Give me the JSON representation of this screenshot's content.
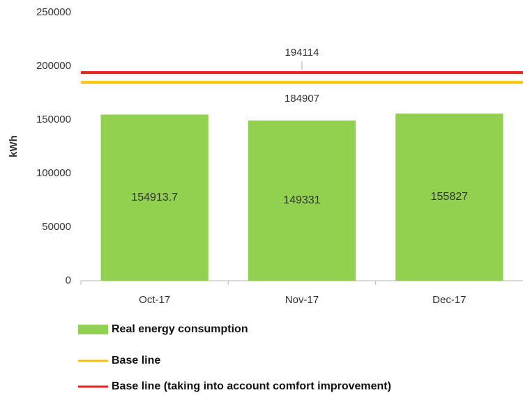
{
  "chart_data": {
    "type": "bar",
    "ylabel": "kWh",
    "categories": [
      "Oct-17",
      "Nov-17",
      "Dec-17"
    ],
    "series": [
      {
        "name": "Real energy consumption",
        "color": "#92d050",
        "values": [
          154913.7,
          149331,
          155827
        ]
      }
    ],
    "reference_lines": [
      {
        "name": "Base line",
        "color": "#ffc000",
        "value": 184907,
        "label_side": "below"
      },
      {
        "name": "Base line (taking into account comfort improvement)",
        "color": "#e8211b",
        "value": 194114,
        "label_side": "above"
      }
    ],
    "ylim": [
      0,
      250000
    ],
    "yticks": [
      0,
      50000,
      100000,
      150000,
      200000,
      250000
    ],
    "grid": false
  }
}
